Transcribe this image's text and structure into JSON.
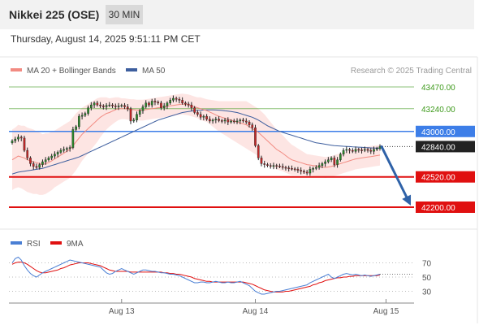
{
  "header": {
    "title": "Nikkei 225 (OSE)",
    "timeframe_label": "30 MIN"
  },
  "timestamp": "Thursday, August 14, 2025 9:51:11 PM CET",
  "chart_data": [
    {
      "type": "line",
      "panel": "price",
      "legend": [
        {
          "label": "MA 20 + Bollinger Bands",
          "color": "#f28b82"
        },
        {
          "label": "MA 50",
          "color": "#3d5e9e"
        }
      ],
      "credit": "Research © 2025 Trading Central",
      "levels": [
        {
          "label": "43470.00",
          "value": 43470,
          "kind": "resistance-target",
          "color": "#3e9a1c"
        },
        {
          "label": "43240.00",
          "value": 43240,
          "kind": "resistance-target",
          "color": "#3e9a1c"
        },
        {
          "label": "43000.00",
          "value": 43000,
          "kind": "pivot",
          "color": "#3d7ee8"
        },
        {
          "label": "42840.00",
          "value": 42840,
          "kind": "last-price",
          "color": "#222222"
        },
        {
          "label": "42520.00",
          "value": 42520,
          "kind": "support-target",
          "color": "#e01010"
        },
        {
          "label": "42200.00",
          "value": 42200,
          "kind": "support-target",
          "color": "#e01010"
        }
      ],
      "ylim": [
        42200,
        43470
      ],
      "x_ticks": [
        {
          "label": "Aug 13",
          "index": 36
        },
        {
          "label": "Aug 14",
          "index": 80
        },
        {
          "label": "Aug 15",
          "index": 123
        }
      ],
      "close": [
        42900,
        42920,
        42940,
        42930,
        42800,
        42720,
        42660,
        42630,
        42620,
        42650,
        42680,
        42700,
        42720,
        42740,
        42760,
        42780,
        42800,
        42810,
        42820,
        42830,
        43020,
        43050,
        43160,
        43170,
        43190,
        43250,
        43280,
        43300,
        43280,
        43270,
        43260,
        43275,
        43280,
        43270,
        43260,
        43270,
        43275,
        43260,
        43240,
        43110,
        43120,
        43180,
        43220,
        43260,
        43300,
        43280,
        43320,
        43310,
        43300,
        43250,
        43270,
        43300,
        43330,
        43350,
        43340,
        43330,
        43300,
        43290,
        43280,
        43250,
        43200,
        43180,
        43150,
        43160,
        43130,
        43110,
        43120,
        43130,
        43115,
        43110,
        43120,
        43100,
        43110,
        43105,
        43110,
        43120,
        43110,
        43100,
        43070,
        43040,
        42850,
        42720,
        42660,
        42650,
        42640,
        42630,
        42640,
        42635,
        42630,
        42620,
        42615,
        42610,
        42605,
        42600,
        42590,
        42580,
        42570,
        42560,
        42600,
        42610,
        42620,
        42640,
        42660,
        42680,
        42700,
        42720,
        42650,
        42700,
        42760,
        42800,
        42810,
        42800,
        42790,
        42810,
        42805,
        42800,
        42810,
        42800,
        42790,
        42810,
        42820,
        42840
      ],
      "ma20": [
        42700,
        42720,
        42740,
        42730,
        42720,
        42700,
        42690,
        42680,
        42670,
        42660,
        42650,
        42660,
        42670,
        42690,
        42710,
        42730,
        42750,
        42770,
        42790,
        42810,
        42850,
        42890,
        42930,
        42970,
        43000,
        43030,
        43060,
        43090,
        43120,
        43150,
        43170,
        43190,
        43200,
        43215,
        43230,
        43240,
        43240,
        43240,
        43235,
        43230,
        43230,
        43225,
        43225,
        43225,
        43230,
        43235,
        43240,
        43245,
        43250,
        43255,
        43260,
        43265,
        43270,
        43275,
        43280,
        43285,
        43290,
        43285,
        43280,
        43270,
        43260,
        43250,
        43240,
        43230,
        43220,
        43205,
        43190,
        43175,
        43160,
        43150,
        43140,
        43130,
        43120,
        43110,
        43100,
        43090,
        43080,
        43070,
        43050,
        43030,
        43010,
        42990,
        42960,
        42930,
        42900,
        42870,
        42840,
        42810,
        42790,
        42770,
        42745,
        42720,
        42700,
        42690,
        42680,
        42670,
        42660,
        42650,
        42645,
        42640,
        42635,
        42630,
        42625,
        42620,
        42625,
        42630,
        42640,
        42650,
        42660,
        42670,
        42680,
        42690,
        42700,
        42710,
        42715,
        42720,
        42725,
        42730,
        42735,
        42740,
        42745,
        42750
      ],
      "ma50": [
        42550,
        42560,
        42570,
        42575,
        42580,
        42585,
        42590,
        42595,
        42600,
        42605,
        42610,
        42620,
        42630,
        42640,
        42650,
        42660,
        42670,
        42680,
        42690,
        42700,
        42710,
        42720,
        42730,
        42745,
        42760,
        42775,
        42790,
        42805,
        42820,
        42835,
        42850,
        42865,
        42880,
        42895,
        42910,
        42925,
        42940,
        42955,
        42970,
        42985,
        43000,
        43015,
        43030,
        43045,
        43060,
        43075,
        43090,
        43105,
        43120,
        43130,
        43140,
        43150,
        43160,
        43170,
        43180,
        43190,
        43200,
        43205,
        43210,
        43215,
        43220,
        43222,
        43224,
        43226,
        43228,
        43228,
        43227,
        43226,
        43225,
        43222,
        43218,
        43214,
        43210,
        43205,
        43200,
        43190,
        43180,
        43170,
        43160,
        43150,
        43135,
        43120,
        43100,
        43080,
        43060,
        43045,
        43030,
        43015,
        43000,
        42990,
        42980,
        42970,
        42960,
        42950,
        42940,
        42930,
        42920,
        42910,
        42900,
        42890,
        42880,
        42875,
        42870,
        42865,
        42860,
        42855,
        42850,
        42848,
        42846,
        42844,
        42842,
        42840,
        42838,
        42836,
        42834,
        42832,
        42830,
        42828,
        42826,
        42825,
        42824,
        42823
      ],
      "bb_width": [
        320,
        320,
        330,
        330,
        340,
        340,
        340,
        340,
        330,
        330,
        320,
        320,
        310,
        310,
        300,
        300,
        300,
        300,
        300,
        300,
        300,
        300,
        290,
        280,
        270,
        260,
        250,
        240,
        230,
        210,
        190,
        170,
        150,
        140,
        130,
        120,
        110,
        110,
        110,
        110,
        110,
        110,
        110,
        110,
        110,
        110,
        110,
        110,
        110,
        110,
        110,
        110,
        110,
        110,
        110,
        110,
        110,
        110,
        110,
        110,
        110,
        110,
        120,
        120,
        120,
        130,
        140,
        150,
        160,
        170,
        180,
        190,
        200,
        210,
        220,
        230,
        240,
        250,
        250,
        250,
        250,
        250,
        250,
        250,
        240,
        230,
        220,
        210,
        200,
        190,
        180,
        170,
        160,
        150,
        140,
        130,
        120,
        110,
        110,
        110,
        110,
        110,
        110,
        110,
        110,
        110,
        110,
        110,
        110,
        110,
        110,
        110,
        110,
        110,
        110,
        110,
        110,
        110,
        110,
        110,
        110,
        110
      ],
      "forecast": {
        "from": 42840,
        "to": 42200
      }
    },
    {
      "type": "line",
      "panel": "rsi",
      "legend": [
        {
          "label": "RSI",
          "color": "#4a7fd4"
        },
        {
          "label": "9MA",
          "color": "#e01010"
        }
      ],
      "y_ticks": [
        70,
        50,
        30
      ],
      "ylim": [
        10,
        90
      ],
      "rsi": [
        70,
        76,
        78,
        74,
        66,
        60,
        55,
        52,
        50,
        53,
        56,
        58,
        60,
        62,
        64,
        66,
        68,
        70,
        72,
        74,
        73,
        72,
        71,
        70,
        69,
        68,
        67,
        66,
        65,
        64,
        60,
        56,
        54,
        55,
        58,
        60,
        62,
        60,
        58,
        56,
        54,
        56,
        58,
        60,
        60,
        59,
        58,
        58,
        57,
        56,
        56,
        55,
        54,
        54,
        53,
        52,
        50,
        48,
        46,
        44,
        42,
        42,
        43,
        43,
        42,
        42,
        43,
        44,
        43,
        42,
        42,
        43,
        42,
        42,
        43,
        44,
        42,
        40,
        38,
        34,
        30,
        28,
        26,
        26,
        27,
        28,
        29,
        30,
        30,
        31,
        32,
        33,
        34,
        35,
        36,
        37,
        38,
        39,
        42,
        44,
        46,
        48,
        50,
        52,
        54,
        50,
        48,
        50,
        52,
        54,
        55,
        54,
        53,
        54,
        53,
        52,
        53,
        52,
        51,
        52,
        53,
        54
      ],
      "ma9": [
        68,
        70,
        71,
        71,
        70,
        68,
        65,
        62,
        59,
        57,
        56,
        56,
        57,
        58,
        59,
        60,
        62,
        63,
        65,
        67,
        68,
        69,
        70,
        70,
        70,
        70,
        69,
        68,
        67,
        66,
        64,
        62,
        60,
        59,
        58,
        58,
        58,
        58,
        58,
        57,
        57,
        57,
        57,
        57,
        57,
        57,
        57,
        57,
        57,
        57,
        56,
        56,
        55,
        55,
        54,
        54,
        53,
        52,
        51,
        50,
        48,
        47,
        46,
        45,
        44,
        44,
        43,
        43,
        43,
        43,
        43,
        43,
        43,
        43,
        43,
        43,
        43,
        42,
        41,
        40,
        38,
        36,
        34,
        32,
        31,
        30,
        29,
        29,
        29,
        29,
        30,
        30,
        31,
        32,
        33,
        34,
        35,
        36,
        37,
        39,
        40,
        42,
        43,
        45,
        46,
        47,
        48,
        49,
        49,
        50,
        50,
        51,
        51,
        52,
        52,
        52,
        52,
        52,
        52,
        52,
        52,
        53
      ]
    }
  ]
}
